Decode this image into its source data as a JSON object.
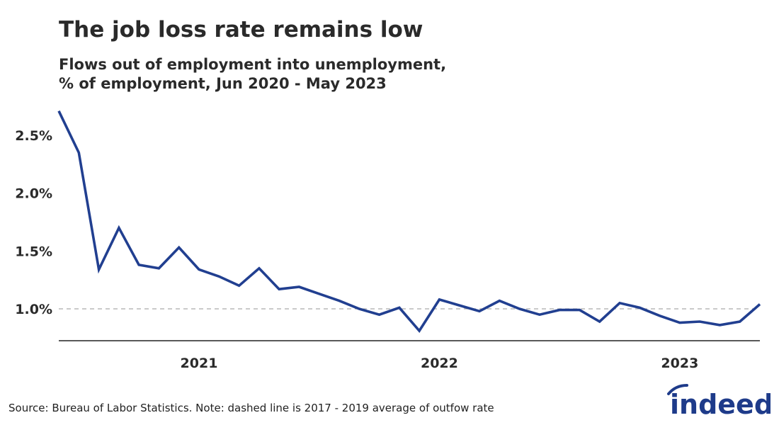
{
  "title": "The job loss rate remains low",
  "subtitle_line1": "Flows out of employment into unemployment,",
  "subtitle_line2": "% of employment, Jun 2020 - May 2023",
  "source": "Source: Bureau of Labor Statistics. Note: dashed line is 2017 - 2019 average of outfow rate",
  "logo_text": "indeed",
  "colors": {
    "line": "#213f90",
    "reference": "#aaaaaa",
    "axis": "#222222",
    "logo": "#1e3b8a"
  },
  "chart_data": {
    "type": "line",
    "title": "The job loss rate remains low",
    "subtitle": "Flows out of employment into unemployment, % of employment, Jun 2020 - May 2023",
    "x": [
      "2020-06",
      "2020-07",
      "2020-08",
      "2020-09",
      "2020-10",
      "2020-11",
      "2020-12",
      "2021-01",
      "2021-02",
      "2021-03",
      "2021-04",
      "2021-05",
      "2021-06",
      "2021-07",
      "2021-08",
      "2021-09",
      "2021-10",
      "2021-11",
      "2021-12",
      "2022-01",
      "2022-02",
      "2022-03",
      "2022-04",
      "2022-05",
      "2022-06",
      "2022-07",
      "2022-08",
      "2022-09",
      "2022-10",
      "2022-11",
      "2022-12",
      "2023-01",
      "2023-02",
      "2023-03",
      "2023-04",
      "2023-05"
    ],
    "series": [
      {
        "values": [
          2.71,
          2.35,
          1.34,
          1.7,
          1.38,
          1.35,
          1.53,
          1.34,
          1.28,
          1.2,
          1.35,
          1.17,
          1.19,
          1.13,
          1.07,
          1.0,
          0.95,
          1.01,
          0.81,
          1.08,
          1.03,
          0.98,
          1.07,
          1.0,
          0.95,
          0.99,
          0.99,
          0.89,
          1.05,
          1.01,
          0.94,
          0.88,
          0.89,
          0.86,
          0.89,
          1.04
        ]
      }
    ],
    "reference_line": 1.0,
    "ylim": [
      0.72,
      2.9
    ],
    "y_ticks": [
      1.0,
      1.5,
      2.0,
      2.5
    ],
    "y_tick_labels": [
      "1.0%",
      "1.5%",
      "2.0%",
      "2.5%"
    ],
    "x_tick_labels": [
      {
        "label": "2021",
        "at": "2021-01"
      },
      {
        "label": "2022",
        "at": "2022-01"
      },
      {
        "label": "2023",
        "at": "2023-01"
      }
    ],
    "grid": false,
    "xlabel": "",
    "ylabel": ""
  }
}
